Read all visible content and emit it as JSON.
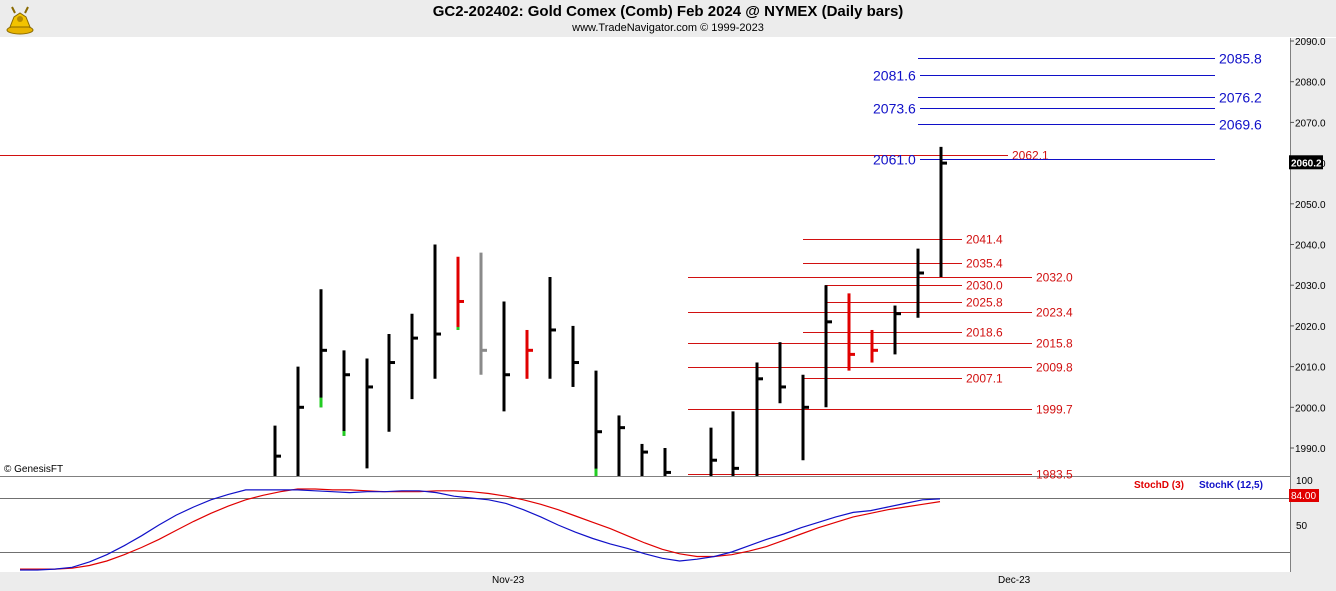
{
  "header": {
    "title": "GC2-202402:  Gold Comex (Comb) Feb 2024 @ NYMEX  (Daily bars)",
    "subtitle": "www.TradeNavigator.com © 1999-2023",
    "logo_icon": "gold-bull-logo-icon"
  },
  "watermark": "© GenesisFT",
  "chart_data": [
    {
      "type": "ohlc",
      "panel": "price",
      "y_ticks": [
        "2090.0",
        "2080.0",
        "2070.0",
        "2060.0",
        "2050.0",
        "2040.0",
        "2030.0",
        "2020.0",
        "2010.0",
        "2000.0",
        "1990.0"
      ],
      "ylim": [
        1982,
        2093
      ],
      "last_price_label": "2060.2",
      "x_date_labels": [
        "Nov-23",
        "Dec-23"
      ],
      "colors": {
        "up": "#000000",
        "down_bar": "#e00000",
        "green_tick": "#22cc22",
        "gray_bar": "#8a8a8a",
        "red_level": "#d11010",
        "blue_level": "#1010c8"
      },
      "bars": [
        {
          "h": 1995.5,
          "l": 1983,
          "c": 1988,
          "col": "#000000"
        },
        {
          "h": 2010,
          "l": 1983,
          "c": 2000,
          "col": "#000000"
        },
        {
          "h": 2029,
          "l": 2000,
          "c": 2014,
          "col": "#000000",
          "open_col": "#22cc22"
        },
        {
          "h": 2014,
          "l": 1993,
          "c": 2008,
          "col": "#000000",
          "open_col": "#22cc22"
        },
        {
          "h": 2012,
          "l": 1985,
          "c": 2005,
          "col": "#000000"
        },
        {
          "h": 2018,
          "l": 1994,
          "c": 2011,
          "col": "#000000"
        },
        {
          "h": 2023,
          "l": 2002,
          "c": 2017,
          "col": "#000000"
        },
        {
          "h": 2040,
          "l": 2007,
          "c": 2018,
          "col": "#000000"
        },
        {
          "h": 2037,
          "l": 2019,
          "c": 2026,
          "col": "#e00000",
          "open_col": "#22cc22"
        },
        {
          "h": 2038,
          "l": 2008,
          "c": 2014,
          "col": "#8a8a8a"
        },
        {
          "h": 2026,
          "l": 1999,
          "c": 2008,
          "col": "#000000"
        },
        {
          "h": 2019,
          "l": 2007,
          "c": 2014,
          "col": "#e00000"
        },
        {
          "h": 2032,
          "l": 2007,
          "c": 2019,
          "col": "#000000"
        },
        {
          "h": 2020,
          "l": 2005,
          "c": 2011,
          "col": "#000000"
        },
        {
          "h": 2009,
          "l": 1983,
          "c": 1994,
          "col": "#000000",
          "open_col": "#22cc22"
        },
        {
          "h": 1998,
          "l": 1983,
          "c": 1995,
          "col": "#000000"
        },
        {
          "h": 1991,
          "l": 1983,
          "c": 1989,
          "col": "#000000"
        },
        {
          "h": 1990,
          "l": 1983,
          "c": 1984,
          "col": "#000000",
          "open_col": "#22cc22"
        },
        {
          "h": 1995,
          "l": 1983,
          "c": 1987,
          "col": "#000000"
        },
        {
          "h": 1999,
          "l": 1983,
          "c": 1985,
          "col": "#000000"
        },
        {
          "h": 2011,
          "l": 1983,
          "c": 2007,
          "col": "#000000"
        },
        {
          "h": 2016,
          "l": 2001,
          "c": 2005,
          "col": "#000000"
        },
        {
          "h": 2008,
          "l": 1987,
          "c": 2000,
          "col": "#000000"
        },
        {
          "h": 2030,
          "l": 2000,
          "c": 2021,
          "col": "#000000"
        },
        {
          "h": 2028,
          "l": 2009,
          "c": 2013,
          "col": "#e00000"
        },
        {
          "h": 2019,
          "l": 2011,
          "c": 2014,
          "col": "#e00000"
        },
        {
          "h": 2025,
          "l": 2013,
          "c": 2023,
          "col": "#000000"
        },
        {
          "h": 2039,
          "l": 2022,
          "c": 2033,
          "col": "#000000"
        },
        {
          "h": 2064,
          "l": 2032,
          "c": 2060,
          "col": "#000000"
        }
      ],
      "red_levels": [
        {
          "value": 2062.1,
          "label": "2062.1",
          "full": true
        },
        {
          "value": 2041.4,
          "label": "2041.4"
        },
        {
          "value": 2035.4,
          "label": "2035.4"
        },
        {
          "value": 2032.0,
          "label": "2032.0"
        },
        {
          "value": 2030.0,
          "label": "2030.0"
        },
        {
          "value": 2025.8,
          "label": "2025.8"
        },
        {
          "value": 2023.4,
          "label": "2023.4"
        },
        {
          "value": 2018.6,
          "label": "2018.6"
        },
        {
          "value": 2015.8,
          "label": "2015.8"
        },
        {
          "value": 2009.8,
          "label": "2009.8"
        },
        {
          "value": 2007.1,
          "label": "2007.1"
        },
        {
          "value": 1999.7,
          "label": "1999.7"
        },
        {
          "value": 1983.5,
          "label": "1983.5"
        }
      ],
      "blue_levels": [
        {
          "value": 2085.8,
          "label": "2085.8",
          "side": "right"
        },
        {
          "value": 2081.6,
          "label": "2081.6",
          "side": "left"
        },
        {
          "value": 2076.2,
          "label": "2076.2",
          "side": "right"
        },
        {
          "value": 2073.6,
          "label": "2073.6",
          "side": "left"
        },
        {
          "value": 2069.6,
          "label": "2069.6",
          "side": "right"
        },
        {
          "value": 2061.0,
          "label": "2061.0",
          "side": "left"
        }
      ]
    },
    {
      "type": "line",
      "panel": "stochastic",
      "ylim": [
        0,
        100
      ],
      "y_ticks": [
        "100",
        "50"
      ],
      "ref_lines": [
        80,
        20
      ],
      "last_value_label": "84.00",
      "legend": [
        "StochD (3)",
        "StochK (12,5)"
      ],
      "series": [
        {
          "name": "StochD (3)",
          "color": "#e00000",
          "values": [
            1,
            1,
            1,
            2,
            5,
            10,
            17,
            25,
            34,
            44,
            54,
            63,
            71,
            78,
            83,
            87,
            90,
            90,
            89,
            89,
            88,
            87,
            87,
            87,
            88,
            88,
            87,
            85,
            82,
            78,
            73,
            67,
            60,
            53,
            46,
            38,
            30,
            23,
            18,
            15,
            15,
            17,
            21,
            26,
            33,
            40,
            47,
            53,
            59,
            63,
            67,
            70,
            73,
            76
          ]
        },
        {
          "name": "StochK (12,5)",
          "color": "#1010c8",
          "values": [
            0,
            0,
            1,
            3,
            9,
            17,
            27,
            38,
            50,
            61,
            70,
            78,
            84,
            89,
            89,
            89,
            89,
            88,
            87,
            86,
            87,
            87,
            88,
            88,
            86,
            82,
            80,
            78,
            74,
            67,
            59,
            50,
            42,
            35,
            29,
            24,
            18,
            13,
            10,
            12,
            15,
            20,
            27,
            34,
            40,
            47,
            53,
            59,
            64,
            66,
            70,
            74,
            78,
            79
          ]
        }
      ]
    }
  ]
}
